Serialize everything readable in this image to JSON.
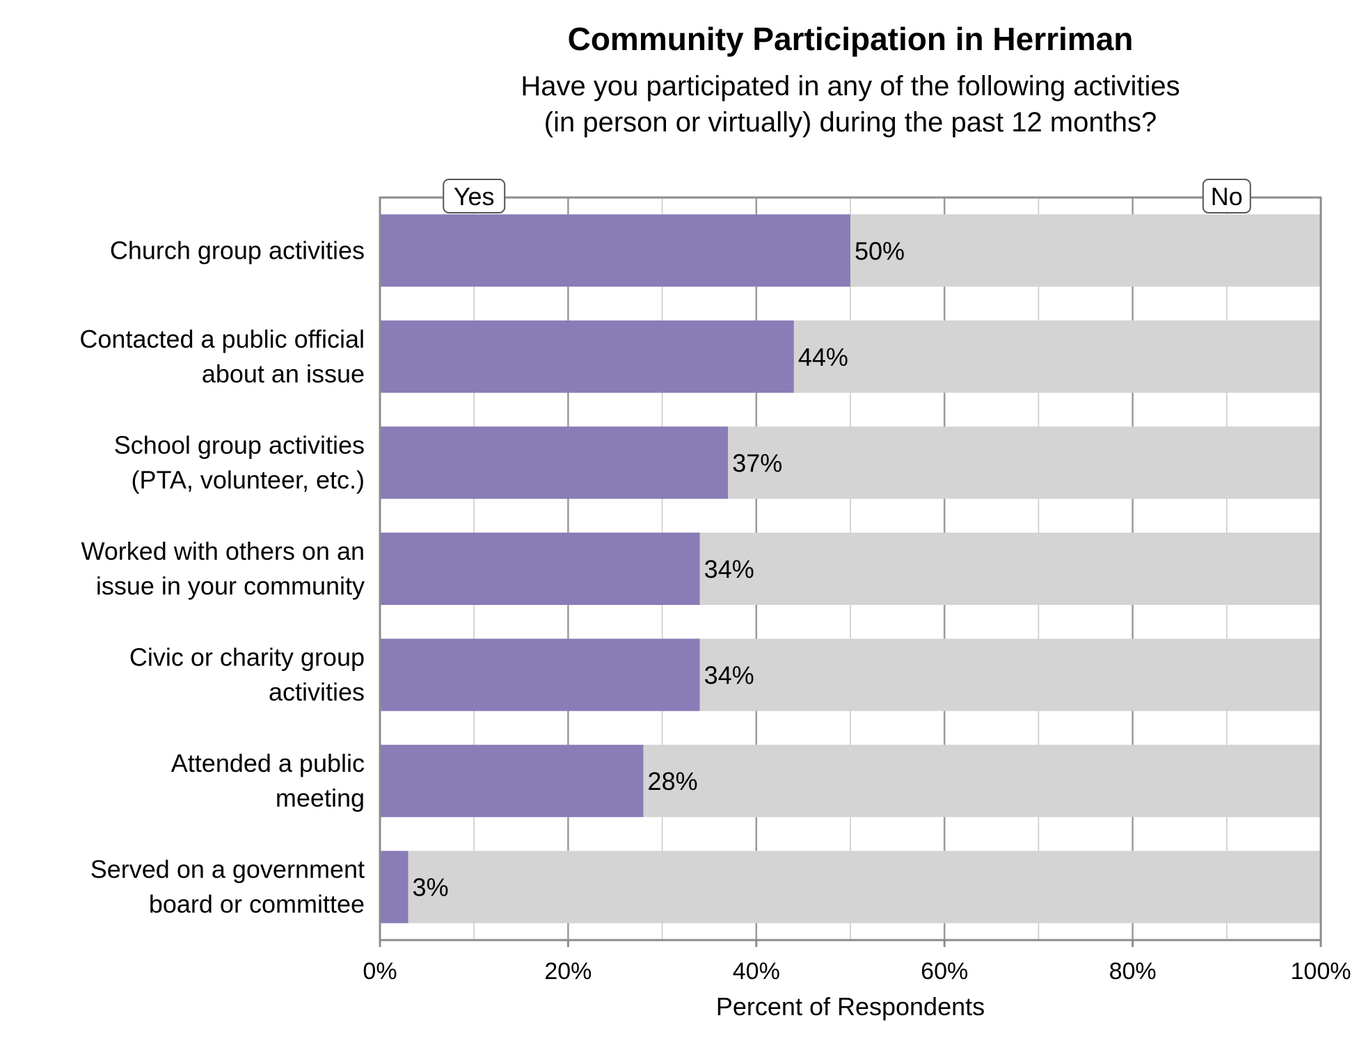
{
  "chart_data": {
    "type": "bar",
    "orientation": "horizontal",
    "stacked": true,
    "title": "Community Participation in Herriman",
    "subtitle_lines": [
      "Have you participated in any of the following activities",
      "(in person or virtually) during the past 12 months?"
    ],
    "xlabel": "Percent of Respondents",
    "ylabel": "",
    "xlim": [
      0,
      100
    ],
    "x_ticks": [
      0,
      20,
      40,
      60,
      80,
      100
    ],
    "x_tick_labels": [
      "0%",
      "20%",
      "40%",
      "60%",
      "80%",
      "100%"
    ],
    "grid": true,
    "categories": [
      [
        "Church group activities"
      ],
      [
        "Contacted a public official",
        "about an issue"
      ],
      [
        "School group activities",
        "(PTA, volunteer, etc.)"
      ],
      [
        "Worked with others on an",
        "issue in your community"
      ],
      [
        "Civic or charity group",
        "activities"
      ],
      [
        "Attended a public",
        "meeting"
      ],
      [
        "Served on a government",
        "board or committee"
      ]
    ],
    "series": [
      {
        "name": "Yes",
        "color": "#8a7cb6",
        "values": [
          50,
          44,
          37,
          34,
          34,
          28,
          3
        ],
        "data_labels": [
          "50%",
          "44%",
          "37%",
          "34%",
          "34%",
          "28%",
          "3%"
        ]
      },
      {
        "name": "No",
        "color": "#d4d4d4",
        "values": [
          50,
          56,
          63,
          66,
          66,
          72,
          97
        ]
      }
    ],
    "legend_placement": "top, above plot"
  }
}
